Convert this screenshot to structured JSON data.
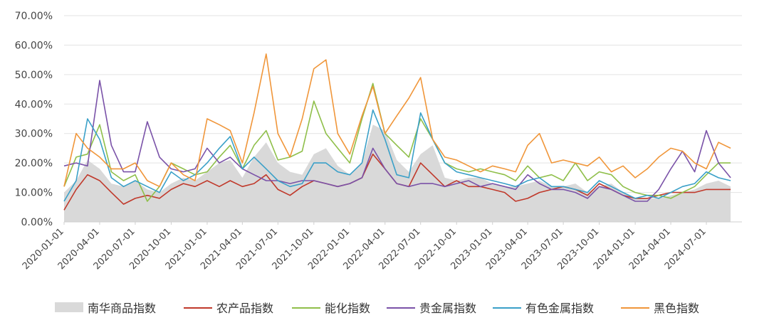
{
  "chart_data": {
    "type": "line",
    "title": "",
    "xlabel": "",
    "ylabel": "",
    "ylim": [
      0,
      0.7
    ],
    "y_ticks": [
      "0.00%",
      "10.00%",
      "20.00%",
      "30.00%",
      "40.00%",
      "50.00%",
      "60.00%",
      "70.00%"
    ],
    "x_ticks": [
      "2020-01-01",
      "2020-04-01",
      "2020-07-01",
      "2020-10-01",
      "2021-01-01",
      "2021-04-01",
      "2021-07-01",
      "2021-10-01",
      "2022-01-01",
      "2022-04-01",
      "2022-07-01",
      "2022-10-01",
      "2023-01-01",
      "2023-04-01",
      "2023-07-01",
      "2023-10-01",
      "2024-01-01",
      "2024-04-01",
      "2024-07-01"
    ],
    "x_range": [
      "2020-01-01",
      "2024-09-30"
    ],
    "grid": "horizontal",
    "legend": "bottom",
    "x": [
      "2020-01-01",
      "2020-02-01",
      "2020-03-01",
      "2020-04-01",
      "2020-05-01",
      "2020-06-01",
      "2020-07-01",
      "2020-08-01",
      "2020-09-01",
      "2020-10-01",
      "2020-11-01",
      "2020-12-01",
      "2021-01-01",
      "2021-02-01",
      "2021-03-01",
      "2021-04-01",
      "2021-05-01",
      "2021-06-01",
      "2021-07-01",
      "2021-08-01",
      "2021-09-01",
      "2021-10-01",
      "2021-11-01",
      "2021-12-01",
      "2022-01-01",
      "2022-02-01",
      "2022-03-01",
      "2022-04-01",
      "2022-05-01",
      "2022-06-01",
      "2022-07-01",
      "2022-08-01",
      "2022-09-01",
      "2022-10-01",
      "2022-11-01",
      "2022-12-01",
      "2023-01-01",
      "2023-02-01",
      "2023-03-01",
      "2023-04-01",
      "2023-05-01",
      "2023-06-01",
      "2023-07-01",
      "2023-08-01",
      "2023-09-01",
      "2023-10-01",
      "2023-11-01",
      "2023-12-01",
      "2024-01-01",
      "2024-02-01",
      "2024-03-01",
      "2024-04-01",
      "2024-05-01",
      "2024-06-01",
      "2024-07-01",
      "2024-08-01",
      "2024-09-01"
    ],
    "series": [
      {
        "name": "南华商品指数",
        "kind": "area",
        "color": "#d9d9d9",
        "values": [
          0.1,
          0.14,
          0.21,
          0.18,
          0.13,
          0.12,
          0.14,
          0.11,
          0.1,
          0.13,
          0.15,
          0.14,
          0.17,
          0.2,
          0.21,
          0.15,
          0.22,
          0.27,
          0.2,
          0.17,
          0.16,
          0.23,
          0.25,
          0.19,
          0.16,
          0.2,
          0.33,
          0.31,
          0.21,
          0.17,
          0.23,
          0.26,
          0.15,
          0.14,
          0.15,
          0.15,
          0.13,
          0.12,
          0.12,
          0.13,
          0.14,
          0.12,
          0.12,
          0.13,
          0.1,
          0.12,
          0.13,
          0.1,
          0.08,
          0.08,
          0.08,
          0.09,
          0.1,
          0.11,
          0.13,
          0.14,
          0.12
        ]
      },
      {
        "name": "农产品指数",
        "kind": "line",
        "color": "#c0392b",
        "values": [
          0.04,
          0.11,
          0.16,
          0.14,
          0.1,
          0.06,
          0.08,
          0.09,
          0.08,
          0.11,
          0.13,
          0.12,
          0.14,
          0.12,
          0.14,
          0.12,
          0.13,
          0.16,
          0.11,
          0.09,
          0.12,
          0.14,
          0.13,
          0.12,
          0.13,
          0.15,
          0.23,
          0.18,
          0.13,
          0.12,
          0.2,
          0.16,
          0.12,
          0.14,
          0.12,
          0.12,
          0.11,
          0.1,
          0.07,
          0.08,
          0.1,
          0.11,
          0.12,
          0.11,
          0.09,
          0.13,
          0.11,
          0.09,
          0.08,
          0.08,
          0.09,
          0.1,
          0.1,
          0.1,
          0.11,
          0.11,
          0.11
        ]
      },
      {
        "name": "能化指数",
        "kind": "line",
        "color": "#8fbf4a",
        "values": [
          0.12,
          0.22,
          0.23,
          0.33,
          0.17,
          0.14,
          0.16,
          0.07,
          0.12,
          0.2,
          0.18,
          0.16,
          0.17,
          0.22,
          0.26,
          0.18,
          0.26,
          0.31,
          0.21,
          0.22,
          0.24,
          0.41,
          0.3,
          0.25,
          0.2,
          0.35,
          0.47,
          0.3,
          0.26,
          0.22,
          0.35,
          0.28,
          0.2,
          0.18,
          0.17,
          0.18,
          0.17,
          0.16,
          0.14,
          0.19,
          0.15,
          0.16,
          0.14,
          0.2,
          0.14,
          0.17,
          0.16,
          0.12,
          0.1,
          0.09,
          0.09,
          0.08,
          0.1,
          0.12,
          0.16,
          0.2,
          0.2
        ]
      },
      {
        "name": "贵金属指数",
        "kind": "line",
        "color": "#7a52a8",
        "values": [
          0.19,
          0.2,
          0.19,
          0.48,
          0.26,
          0.17,
          0.17,
          0.34,
          0.22,
          0.18,
          0.17,
          0.18,
          0.25,
          0.2,
          0.22,
          0.18,
          0.16,
          0.14,
          0.14,
          0.13,
          0.14,
          0.14,
          0.13,
          0.12,
          0.13,
          0.15,
          0.25,
          0.18,
          0.13,
          0.12,
          0.13,
          0.13,
          0.12,
          0.13,
          0.14,
          0.12,
          0.13,
          0.12,
          0.11,
          0.16,
          0.13,
          0.11,
          0.11,
          0.1,
          0.08,
          0.12,
          0.11,
          0.09,
          0.07,
          0.07,
          0.11,
          0.18,
          0.24,
          0.17,
          0.31,
          0.2,
          0.15
        ]
      },
      {
        "name": "有色金属指数",
        "kind": "line",
        "color": "#3aa0c8",
        "values": [
          0.07,
          0.14,
          0.35,
          0.28,
          0.15,
          0.12,
          0.14,
          0.12,
          0.1,
          0.17,
          0.14,
          0.16,
          0.2,
          0.25,
          0.29,
          0.18,
          0.22,
          0.18,
          0.14,
          0.12,
          0.13,
          0.2,
          0.2,
          0.17,
          0.16,
          0.2,
          0.38,
          0.28,
          0.16,
          0.15,
          0.37,
          0.28,
          0.2,
          0.17,
          0.16,
          0.15,
          0.14,
          0.13,
          0.12,
          0.14,
          0.15,
          0.12,
          0.12,
          0.11,
          0.1,
          0.14,
          0.12,
          0.1,
          0.08,
          0.09,
          0.08,
          0.1,
          0.12,
          0.13,
          0.17,
          0.15,
          0.14
        ]
      },
      {
        "name": "黑色指数",
        "kind": "line",
        "color": "#f0963a",
        "values": [
          0.12,
          0.3,
          0.25,
          0.22,
          0.18,
          0.18,
          0.2,
          0.14,
          0.12,
          0.2,
          0.16,
          0.14,
          0.35,
          0.33,
          0.31,
          0.2,
          0.37,
          0.57,
          0.3,
          0.22,
          0.35,
          0.52,
          0.55,
          0.3,
          0.23,
          0.36,
          0.46,
          0.3,
          0.36,
          0.42,
          0.49,
          0.28,
          0.22,
          0.21,
          0.19,
          0.17,
          0.19,
          0.18,
          0.17,
          0.26,
          0.3,
          0.2,
          0.21,
          0.2,
          0.19,
          0.22,
          0.17,
          0.19,
          0.15,
          0.18,
          0.22,
          0.25,
          0.24,
          0.2,
          0.18,
          0.27,
          0.25
        ]
      }
    ]
  }
}
